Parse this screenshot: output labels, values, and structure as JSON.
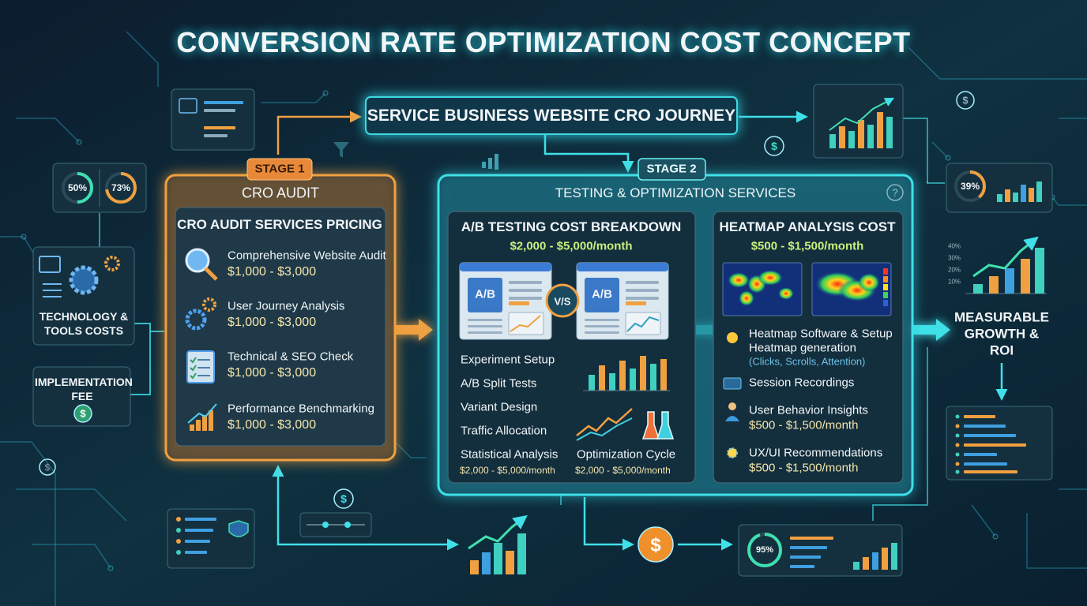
{
  "header": {
    "title": "CONVERSION RATE OPTIMIZATION COST CONCEPT"
  },
  "journey": {
    "label": "SERVICE BUSINESS WEBSITE CRO JOURNEY"
  },
  "icons": {
    "coin": "$"
  },
  "left": {
    "gauges": [
      "50%",
      "73%"
    ],
    "technology": "TECHNOLOGY & TOOLS COSTS",
    "implementation": "IMPLEMENTATION FEE"
  },
  "stage1": {
    "tag": "STAGE 1",
    "title": "CRO AUDIT",
    "panel_title": "CRO AUDIT SERVICES PRICING",
    "items": [
      {
        "name": "Comprehensive Website Audit",
        "price": "$1,000 - $3,000"
      },
      {
        "name": "User Journey Analysis",
        "price": "$1,000 - $3,000"
      },
      {
        "name": "Technical & SEO Check",
        "price": "$1,000 - $3,000"
      },
      {
        "name": "Performance Benchmarking",
        "price": "$1,000 - $3,000"
      }
    ]
  },
  "stage2": {
    "tag": "STAGE 2",
    "title": "TESTING & OPTIMIZATION SERVICES",
    "help": "?",
    "ab_testing": {
      "title": "A/B TESTING COST BREAKDOWN",
      "price": "$2,000 - $5,000/month",
      "variant_a": "A/B",
      "versus": "V/S",
      "variant_b": "A/B",
      "steps": [
        "Experiment Setup",
        "A/B Split Tests",
        "Variant Design",
        "Traffic Allocation",
        "Statistical Analysis"
      ],
      "steps_price": "$2,000 - $5,000/month",
      "cycle": "Optimization Cycle",
      "cycle_price": "$2,000 - $5,000/month"
    },
    "heatmap": {
      "title": "HEATMAP ANALYSIS COST",
      "price": "$500 - $1,500/month",
      "items": [
        {
          "name": "Heatmap Software & Setup",
          "detail": "Heatmap generation",
          "note": "(Clicks, Scrolls, Attention)"
        },
        {
          "name": "Session Recordings"
        },
        {
          "name": "User Behavior Insights",
          "price": "$500 - $1,500/month"
        },
        {
          "name": "UX/UI Recommendations",
          "price": "$500 - $1,500/month"
        }
      ]
    }
  },
  "right": {
    "gauge": "39%",
    "growth_axis": [
      "40%",
      "30%",
      "20%",
      "10%"
    ],
    "outcome": "MEASURABLE GROWTH & ROI",
    "bottom_gauge": "95%"
  }
}
